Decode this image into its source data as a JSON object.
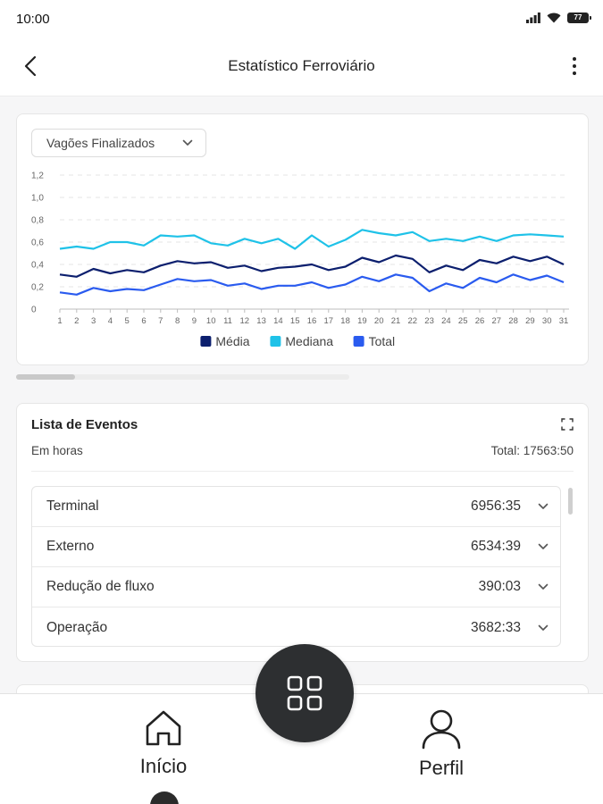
{
  "status_bar": {
    "time": "10:00",
    "battery": "77"
  },
  "header": {
    "title": "Estatístico Ferroviário",
    "back_icon": "chevron-left-icon",
    "more_icon": "more-vertical-icon"
  },
  "chart_card": {
    "selector_value": "Vagões Finalizados",
    "chart_data": {
      "type": "line",
      "x": [
        1,
        2,
        3,
        4,
        5,
        6,
        7,
        8,
        9,
        10,
        11,
        12,
        13,
        14,
        15,
        16,
        17,
        18,
        19,
        20,
        21,
        22,
        23,
        24,
        25,
        26,
        27,
        28,
        29,
        30,
        31
      ],
      "y_ticks": [
        "0",
        "0,2",
        "0,4",
        "0,6",
        "0,8",
        "1,0",
        "1,2"
      ],
      "ylim": [
        0,
        1.2
      ],
      "grid": true,
      "legend_position": "bottom",
      "series": [
        {
          "name": "Média",
          "color": "#0c1f6e",
          "values": [
            0.31,
            0.29,
            0.36,
            0.32,
            0.35,
            0.33,
            0.39,
            0.43,
            0.41,
            0.42,
            0.37,
            0.39,
            0.34,
            0.37,
            0.38,
            0.4,
            0.35,
            0.38,
            0.46,
            0.42,
            0.48,
            0.45,
            0.33,
            0.39,
            0.35,
            0.44,
            0.41,
            0.47,
            0.43,
            0.47,
            0.4
          ]
        },
        {
          "name": "Mediana",
          "color": "#1fc2e8",
          "values": [
            0.54,
            0.56,
            0.54,
            0.6,
            0.6,
            0.57,
            0.66,
            0.65,
            0.66,
            0.59,
            0.57,
            0.63,
            0.59,
            0.63,
            0.54,
            0.66,
            0.56,
            0.62,
            0.71,
            0.68,
            0.66,
            0.69,
            0.61,
            0.63,
            0.61,
            0.65,
            0.61,
            0.66,
            0.67,
            0.66,
            0.65
          ]
        },
        {
          "name": "Total",
          "color": "#2a5bef",
          "values": [
            0.15,
            0.13,
            0.19,
            0.16,
            0.18,
            0.17,
            0.22,
            0.27,
            0.25,
            0.26,
            0.21,
            0.23,
            0.18,
            0.21,
            0.21,
            0.24,
            0.19,
            0.22,
            0.29,
            0.25,
            0.31,
            0.28,
            0.16,
            0.23,
            0.19,
            0.28,
            0.24,
            0.31,
            0.26,
            0.3,
            0.24
          ]
        }
      ]
    }
  },
  "events": {
    "title": "Lista de Eventos",
    "subtitle": "Em horas",
    "total": "Total: 17563:50",
    "rows": [
      {
        "name": "Terminal",
        "value": "6956:35"
      },
      {
        "name": "Externo",
        "value": "6534:39"
      },
      {
        "name": "Redução de fluxo",
        "value": "390:03"
      },
      {
        "name": "Operação",
        "value": "3682:33"
      }
    ]
  },
  "bottom_nav": {
    "home_label": "Início",
    "profile_label": "Perfil",
    "fab_icon": "grid-icon"
  }
}
